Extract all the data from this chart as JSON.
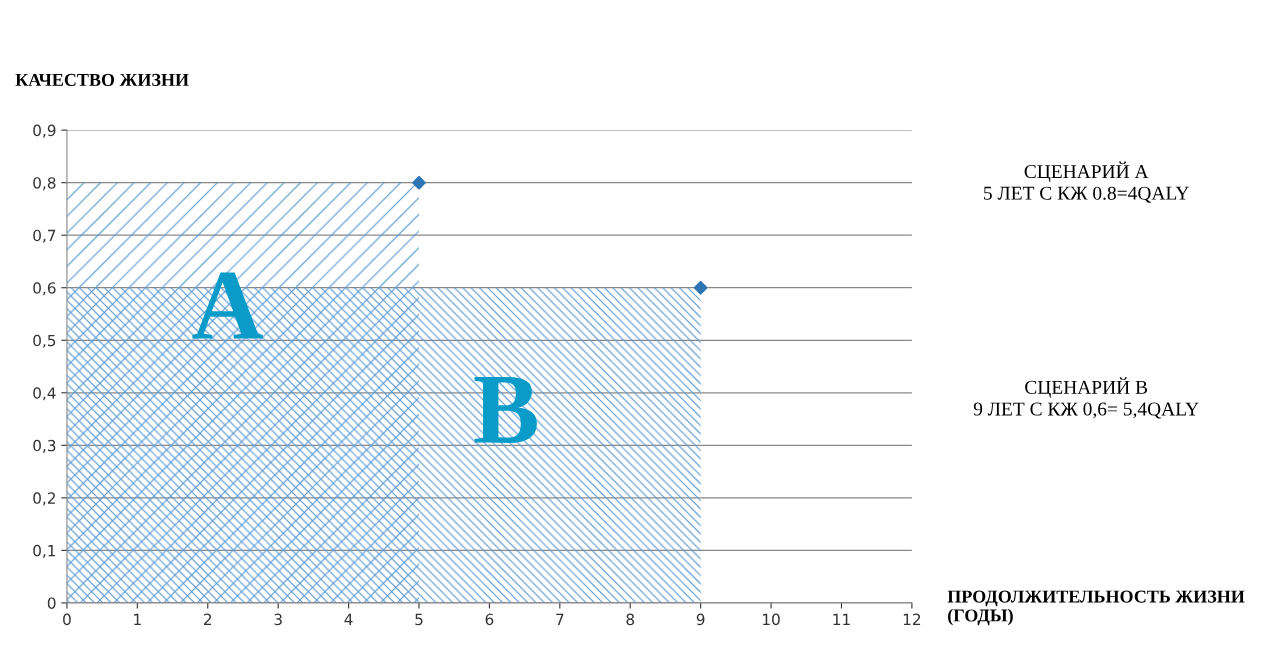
{
  "chart_data": {
    "type": "area",
    "xlabel": "ПРОДОЛЖИТЕЛЬНОСТЬ ЖИЗНИ\n(ГОДЫ)",
    "ylabel": "КАЧЕСТВО ЖИЗНИ",
    "series": [
      {
        "x": [
          0,
          5
        ],
        "values": [
          0.8,
          0.8
        ],
        "color": "#5b9bd5"
      },
      {
        "x": [
          0,
          9
        ],
        "values": [
          0.6,
          0.6
        ],
        "color": "#5b9bd5"
      },
      {
        "type": "scatter",
        "x": [
          5,
          9
        ],
        "values": [
          0.8,
          0.6
        ],
        "color": "#2e75b6",
        "marker": "diamond"
      }
    ],
    "xlim": [
      0,
      12
    ],
    "xticks": [
      0,
      1,
      2,
      3,
      4,
      5,
      6,
      7,
      8,
      9,
      10,
      11,
      12
    ],
    "ylim": [
      0,
      0.9
    ],
    "yticks": [
      0,
      {
        "value": 0.1,
        "label": "0,1"
      },
      {
        "value": 0.2,
        "label": "0,2"
      },
      {
        "value": 0.3,
        "label": "0,3"
      },
      {
        "value": 0.4,
        "label": "0,4"
      },
      {
        "value": 0.5,
        "label": "0,5"
      },
      {
        "value": 0.6,
        "label": "0,6"
      },
      {
        "value": 0.7,
        "label": "0,7"
      },
      {
        "value": 0.8,
        "label": "0,8"
      },
      {
        "value": 0.9,
        "label": "0,9"
      }
    ],
    "grid": "y",
    "annotations": [
      "A",
      "B",
      "СЦЕНАРИЙ А\n5 ЛЕТ С КЖ 0.8=4QALY",
      "СЦЕНАРИЙ В\n9 ЛЕТ С КЖ 0,6= 5,4QALY"
    ]
  }
}
